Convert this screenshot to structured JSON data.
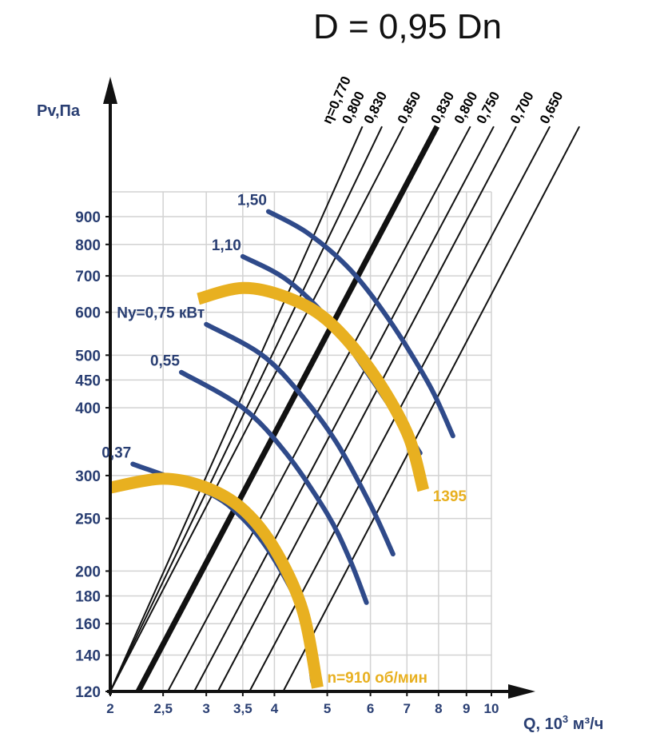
{
  "chart_data": {
    "type": "line",
    "title": "D = 0,95 Dn",
    "ylabel": "Pv,Па",
    "xlabel_prefix": "Q, 10",
    "xlabel_sup": "3",
    "xlabel_suffix": " м³/ч",
    "x_scale": "log",
    "y_scale": "log",
    "xlim": [
      2,
      10
    ],
    "ylim": [
      120,
      1000
    ],
    "grid": true,
    "x_ticks": [
      {
        "value": 2,
        "label": "2"
      },
      {
        "value": 2.5,
        "label": "2,5"
      },
      {
        "value": 3,
        "label": "3"
      },
      {
        "value": 3.5,
        "label": "3,5"
      },
      {
        "value": 4,
        "label": "4"
      },
      {
        "value": 5,
        "label": "5"
      },
      {
        "value": 6,
        "label": "6"
      },
      {
        "value": 7,
        "label": "7"
      },
      {
        "value": 8,
        "label": "8"
      },
      {
        "value": 9,
        "label": "9"
      },
      {
        "value": 10,
        "label": "10"
      }
    ],
    "y_ticks": [
      {
        "value": 120,
        "label": "120"
      },
      {
        "value": 140,
        "label": "140"
      },
      {
        "value": 160,
        "label": "160"
      },
      {
        "value": 180,
        "label": "180"
      },
      {
        "value": 200,
        "label": "200"
      },
      {
        "value": 250,
        "label": "250"
      },
      {
        "value": 300,
        "label": "300"
      },
      {
        "value": 400,
        "label": "400"
      },
      {
        "value": 450,
        "label": "450"
      },
      {
        "value": 500,
        "label": "500"
      },
      {
        "value": 600,
        "label": "600"
      },
      {
        "value": 700,
        "label": "700"
      },
      {
        "value": 800,
        "label": "800"
      },
      {
        "value": 900,
        "label": "900"
      }
    ],
    "speed_curves": [
      {
        "label": "n=910 об/мин",
        "color": "#e8b020",
        "points": [
          [
            2,
            285
          ],
          [
            2.5,
            296
          ],
          [
            3,
            285
          ],
          [
            3.5,
            260
          ],
          [
            4,
            220
          ],
          [
            4.5,
            170
          ],
          [
            4.8,
            122
          ]
        ]
      },
      {
        "label": "1395",
        "color": "#e8b020",
        "points": [
          [
            2.9,
            635
          ],
          [
            3.5,
            665
          ],
          [
            4.2,
            640
          ],
          [
            5,
            580
          ],
          [
            6,
            470
          ],
          [
            7,
            360
          ],
          [
            7.5,
            282
          ]
        ]
      }
    ],
    "power_curves": [
      {
        "label": "0,37",
        "color": "#2f4a8a",
        "points": [
          [
            2.2,
            315
          ],
          [
            3,
            280
          ],
          [
            3.5,
            250
          ],
          [
            4,
            210
          ],
          [
            4.5,
            165
          ],
          [
            4.7,
            125
          ]
        ]
      },
      {
        "label": "0,55",
        "color": "#2f4a8a",
        "points": [
          [
            2.7,
            465
          ],
          [
            3.5,
            400
          ],
          [
            4.2,
            330
          ],
          [
            5,
            255
          ],
          [
            5.5,
            210
          ],
          [
            5.9,
            175
          ]
        ]
      },
      {
        "label": "Ny=0,75 кВт",
        "color": "#2f4a8a",
        "points": [
          [
            3,
            570
          ],
          [
            3.8,
            500
          ],
          [
            4.5,
            420
          ],
          [
            5.2,
            345
          ],
          [
            6,
            265
          ],
          [
            6.6,
            215
          ]
        ]
      },
      {
        "label": "1,10",
        "color": "#2f4a8a",
        "points": [
          [
            3.5,
            760
          ],
          [
            4.2,
            690
          ],
          [
            5,
            585
          ],
          [
            6,
            455
          ],
          [
            7,
            360
          ],
          [
            7.4,
            330
          ]
        ]
      },
      {
        "label": "1,50",
        "color": "#2f4a8a",
        "points": [
          [
            3.9,
            920
          ],
          [
            4.6,
            840
          ],
          [
            5.5,
            720
          ],
          [
            6.5,
            580
          ],
          [
            7.7,
            440
          ],
          [
            8.5,
            355
          ]
        ]
      }
    ],
    "efficiency_lines": [
      {
        "label": "η=0,770",
        "x_at_base": 2.0,
        "x_at_top": 5.8
      },
      {
        "label": "0,800",
        "x_at_base": 2.0,
        "x_at_top": 6.3
      },
      {
        "label": "0,830",
        "x_at_base": 2.0,
        "x_at_top": 6.9
      },
      {
        "label": "0,850",
        "x_at_base": 2.25,
        "x_at_top": 7.95,
        "bold": true
      },
      {
        "label": "0,830",
        "x_at_base": 2.55,
        "x_at_top": 9.15
      },
      {
        "label": "0,800",
        "x_at_base": 2.85,
        "x_at_top": 10.1
      },
      {
        "label": "0,750",
        "x_at_base": 3.15,
        "x_at_top": 11.1
      },
      {
        "label": "0,700",
        "x_at_base": 3.6,
        "x_at_top": 12.8
      },
      {
        "label": "0,650",
        "x_at_base": 4.15,
        "x_at_top": 14.5
      }
    ]
  }
}
